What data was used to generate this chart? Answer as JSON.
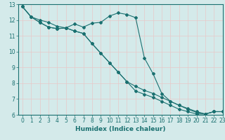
{
  "xlabel": "Humidex (Indice chaleur)",
  "xlim": [
    -0.5,
    23
  ],
  "ylim": [
    6,
    13
  ],
  "yticks": [
    6,
    7,
    8,
    9,
    10,
    11,
    12,
    13
  ],
  "xticks": [
    0,
    1,
    2,
    3,
    4,
    5,
    6,
    7,
    8,
    9,
    10,
    11,
    12,
    13,
    14,
    15,
    16,
    17,
    18,
    19,
    20,
    21,
    22,
    23
  ],
  "bg_color": "#d4eaea",
  "grid_color": "#e8c8c8",
  "line_color": "#1a7070",
  "line1_x": [
    0,
    1,
    2,
    3,
    4,
    5,
    6,
    7,
    8,
    9,
    10,
    11,
    12,
    13,
    14,
    15,
    16,
    17,
    18,
    19,
    20,
    21,
    22,
    23
  ],
  "line1_y": [
    12.85,
    12.2,
    12.0,
    11.85,
    11.6,
    11.5,
    11.75,
    11.55,
    11.8,
    11.85,
    12.25,
    12.45,
    12.35,
    12.15,
    9.6,
    8.6,
    7.35,
    6.85,
    6.6,
    6.35,
    6.15,
    6.05,
    6.2,
    6.2
  ],
  "line2_x": [
    0,
    1,
    2,
    3,
    4,
    5,
    6,
    7,
    8,
    9,
    10,
    11,
    12,
    13,
    14,
    15,
    16,
    17,
    18,
    19,
    20,
    21,
    22,
    23
  ],
  "line2_y": [
    12.85,
    12.2,
    11.85,
    11.55,
    11.45,
    11.5,
    11.3,
    11.15,
    10.5,
    9.9,
    9.3,
    8.7,
    8.1,
    7.8,
    7.55,
    7.35,
    7.1,
    6.85,
    6.6,
    6.4,
    6.2,
    6.05,
    6.2,
    6.2
  ],
  "line3_x": [
    0,
    1,
    2,
    3,
    4,
    5,
    6,
    7,
    8,
    9,
    10,
    11,
    12,
    13,
    14,
    15,
    16,
    17,
    18,
    19,
    20,
    21,
    22,
    23
  ],
  "line3_y": [
    12.85,
    12.2,
    11.85,
    11.55,
    11.45,
    11.5,
    11.3,
    11.15,
    10.5,
    9.9,
    9.3,
    8.7,
    8.1,
    7.5,
    7.3,
    7.1,
    6.85,
    6.6,
    6.35,
    6.2,
    6.05,
    6.05,
    6.2,
    6.2
  ],
  "tick_fontsize": 5.5,
  "xlabel_fontsize": 6.5
}
